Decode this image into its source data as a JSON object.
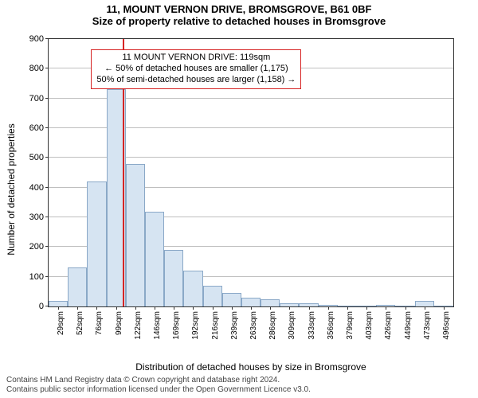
{
  "title": {
    "line1": "11, MOUNT VERNON DRIVE, BROMSGROVE, B61 0BF",
    "line2": "Size of property relative to detached houses in Bromsgrove",
    "fontsize": 13
  },
  "chart": {
    "type": "histogram",
    "ylabel": "Number of detached properties",
    "xlabel": "Distribution of detached houses by size in Bromsgrove",
    "label_fontsize": 12,
    "background_color": "#ffffff",
    "axis_color": "#333333",
    "grid_color": "#bfbfbf",
    "bar_fill": "#d6e4f2",
    "bar_edge": "#8aa8c7",
    "bar_width": 1.0,
    "ylim": [
      0,
      900
    ],
    "ytick_step": 100,
    "categories": [
      "29sqm",
      "52sqm",
      "76sqm",
      "99sqm",
      "122sqm",
      "146sqm",
      "169sqm",
      "192sqm",
      "216sqm",
      "239sqm",
      "263sqm",
      "286sqm",
      "309sqm",
      "333sqm",
      "356sqm",
      "379sqm",
      "403sqm",
      "426sqm",
      "449sqm",
      "473sqm",
      "496sqm"
    ],
    "values": [
      20,
      130,
      420,
      730,
      480,
      320,
      190,
      120,
      70,
      45,
      30,
      25,
      10,
      10,
      5,
      2,
      0,
      5,
      0,
      20,
      2
    ],
    "marker": {
      "color": "#d62424",
      "position_index": 3.85,
      "annotation": {
        "border_color": "#d62424",
        "lines": [
          "11 MOUNT VERNON DRIVE: 119sqm",
          "← 50% of detached houses are smaller (1,175)",
          "50% of semi-detached houses are larger (1,158) →"
        ]
      }
    }
  },
  "footer": {
    "line1": "Contains HM Land Registry data © Crown copyright and database right 2024.",
    "line2": "Contains public sector information licensed under the Open Government Licence v3.0.",
    "color": "#444444",
    "fontsize": 10
  }
}
